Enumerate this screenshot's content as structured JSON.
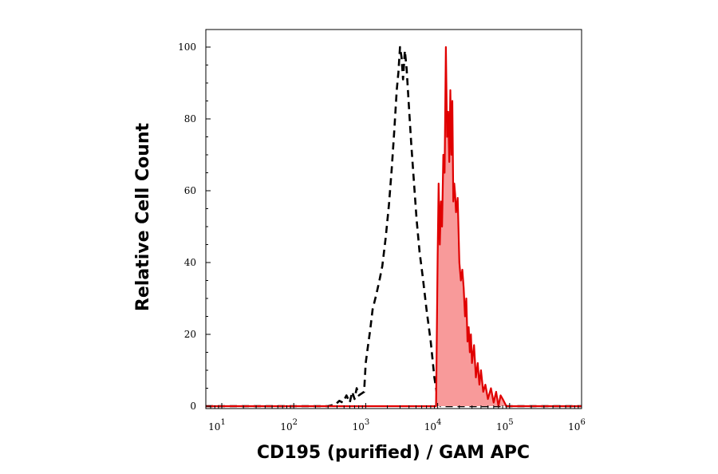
{
  "chart_data": {
    "type": "area",
    "xlabel": "CD195 (purified) / GAM APC",
    "ylabel": "Relative Cell Count",
    "x_scale": "log",
    "xlim": [
      6,
      1000000
    ],
    "ylim": [
      0,
      100
    ],
    "y_ticks": [
      0,
      20,
      40,
      60,
      80,
      100
    ],
    "y_tick_labels": [
      "0",
      "20",
      "40",
      "60",
      "80",
      "100"
    ],
    "x_ticks": [
      {
        "value": 10,
        "base": "10",
        "exp": "1"
      },
      {
        "value": 100,
        "base": "10",
        "exp": "2"
      },
      {
        "value": 1000,
        "base": "10",
        "exp": "3"
      },
      {
        "value": 10000,
        "base": "10",
        "exp": "4"
      },
      {
        "value": 100000,
        "base": "10",
        "exp": "5"
      },
      {
        "value": 1000000,
        "base": "10",
        "exp": "6"
      }
    ],
    "grid": false,
    "legend": "none",
    "series": [
      {
        "style": "dashed-line",
        "color": "#000000",
        "x": [
          6,
          300,
          380,
          430,
          480,
          540,
          600,
          650,
          700,
          750,
          800,
          870,
          950,
          1000,
          1080,
          1150,
          1250,
          1400,
          1550,
          1700,
          1900,
          2100,
          2300,
          2500,
          2700,
          2850,
          3000,
          3150,
          3300,
          3500,
          3700,
          4000,
          4300,
          4700,
          5100,
          5600,
          6200,
          7000,
          8000,
          9000,
          10000,
          11000,
          1000000
        ],
        "y": [
          0,
          0,
          0.5,
          1.5,
          1,
          3,
          1,
          4,
          2,
          5,
          3,
          3.5,
          4,
          12,
          17,
          21,
          27,
          31,
          35,
          39,
          47,
          56,
          66,
          77,
          88,
          93,
          100,
          97,
          91,
          99,
          94,
          83,
          73,
          62,
          52,
          43,
          36,
          27,
          18,
          8,
          2,
          0,
          0
        ]
      },
      {
        "style": "filled",
        "color": "#e00000",
        "fill": "#f89a9a",
        "x": [
          6,
          9500,
          10000,
          10300,
          10700,
          11100,
          11500,
          12000,
          12500,
          13000,
          13500,
          14000,
          14500,
          15000,
          15500,
          16000,
          16500,
          17000,
          17500,
          18000,
          19000,
          20000,
          21000,
          22000,
          23000,
          24000,
          25000,
          26000,
          27000,
          28000,
          29000,
          30000,
          32000,
          34000,
          36000,
          38000,
          40000,
          43000,
          46000,
          50000,
          55000,
          60000,
          65000,
          70000,
          75000,
          80000,
          90000,
          1000000
        ],
        "y": [
          0,
          0,
          42,
          62,
          45,
          57,
          50,
          70,
          65,
          100,
          75,
          82,
          68,
          88,
          70,
          85,
          57,
          62,
          59,
          54,
          58,
          40,
          35,
          38,
          33,
          25,
          30,
          18,
          22,
          15,
          20,
          12,
          17,
          8,
          12,
          6,
          10,
          4,
          6,
          2,
          5,
          1,
          4,
          0,
          3,
          2,
          0,
          0
        ]
      }
    ]
  }
}
